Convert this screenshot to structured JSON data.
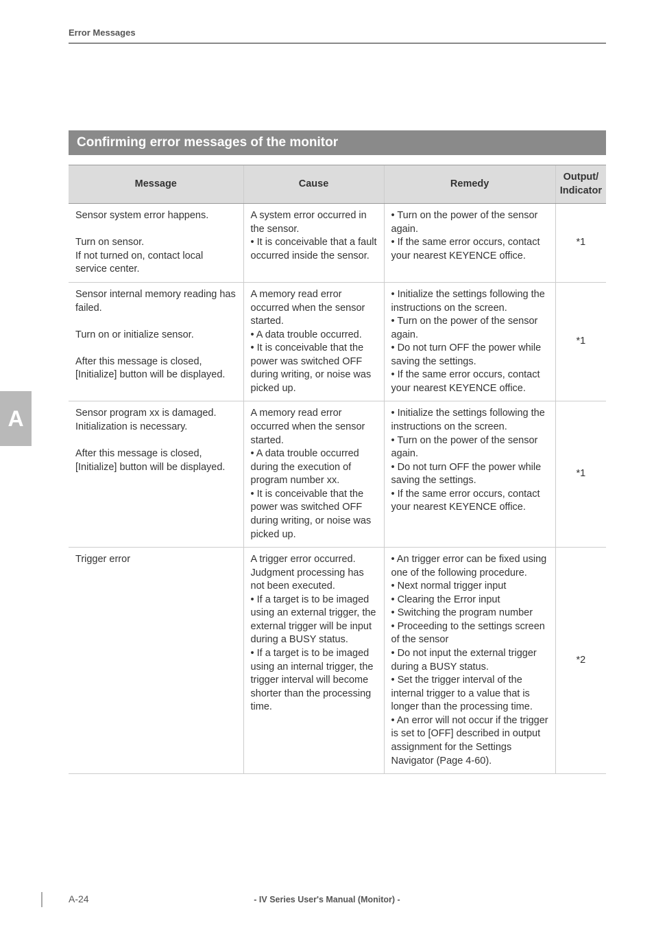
{
  "running_head": "Error Messages",
  "side_tab": "A",
  "section_title": "Confirming error messages of the monitor",
  "table": {
    "headers": {
      "message": "Message",
      "cause": "Cause",
      "remedy": "Remedy",
      "output": "Output/\nIndicator"
    },
    "rows": [
      {
        "message": "Sensor system error happens.\n\nTurn on sensor.\nIf not turned on, contact local service center.",
        "cause": "A system error occurred in the sensor.\n• It is conceivable that a fault occurred inside the sensor.",
        "remedy": "• Turn on the power of the sensor again.\n• If the same error occurs, contact your nearest KEYENCE office.",
        "output": "*1"
      },
      {
        "message": "Sensor internal memory reading has failed.\n\nTurn on or initialize sensor.\n\nAfter this message is closed, [Initialize] button will be displayed.",
        "cause": "A memory read error occurred when the sensor started.\n• A data trouble occurred.\n• It is conceivable that the power was switched OFF during writing, or noise was picked up.",
        "remedy": "• Initialize the settings following the instructions on the screen.\n• Turn on the power of the sensor again.\n• Do not turn OFF the power while saving the settings.\n• If the same error occurs, contact your nearest KEYENCE office.",
        "output": "*1"
      },
      {
        "message": "Sensor program xx is damaged.\nInitialization is necessary.\n\nAfter this message is closed, [Initialize] button will be displayed.",
        "cause": "A memory read error occurred when the sensor started.\n• A data trouble occurred during the execution of program number xx.\n• It is conceivable that the power was switched OFF during writing, or noise was picked up.",
        "remedy": "• Initialize the settings following the instructions on the screen.\n• Turn on the power of the sensor again.\n• Do not turn OFF the power while saving the settings.\n• If the same error occurs, contact your nearest KEYENCE office.",
        "output": "*1"
      },
      {
        "message": "Trigger error",
        "cause": "A trigger error occurred.\nJudgment processing has not been executed.\n• If a target is to be imaged using an external trigger, the external trigger will be input during a BUSY status.\n• If a target is to be imaged using an internal trigger, the trigger interval will become shorter than the processing time.",
        "remedy": "• An trigger error can be fixed using one of the following procedure.\n   • Next normal trigger input\n   • Clearing the Error input\n   • Switching the program number\n   • Proceeding to the settings screen of the sensor\n• Do not input the external trigger during a BUSY status.\n• Set the trigger interval of the internal trigger to a value that is longer than the processing time.\n• An error will not occur if the trigger is set to [OFF] described in output assignment for the Settings Navigator (Page 4-60).",
        "output": "*2"
      }
    ]
  },
  "footer": {
    "page": "A-24",
    "center": "- IV Series User's Manual (Monitor) -"
  }
}
